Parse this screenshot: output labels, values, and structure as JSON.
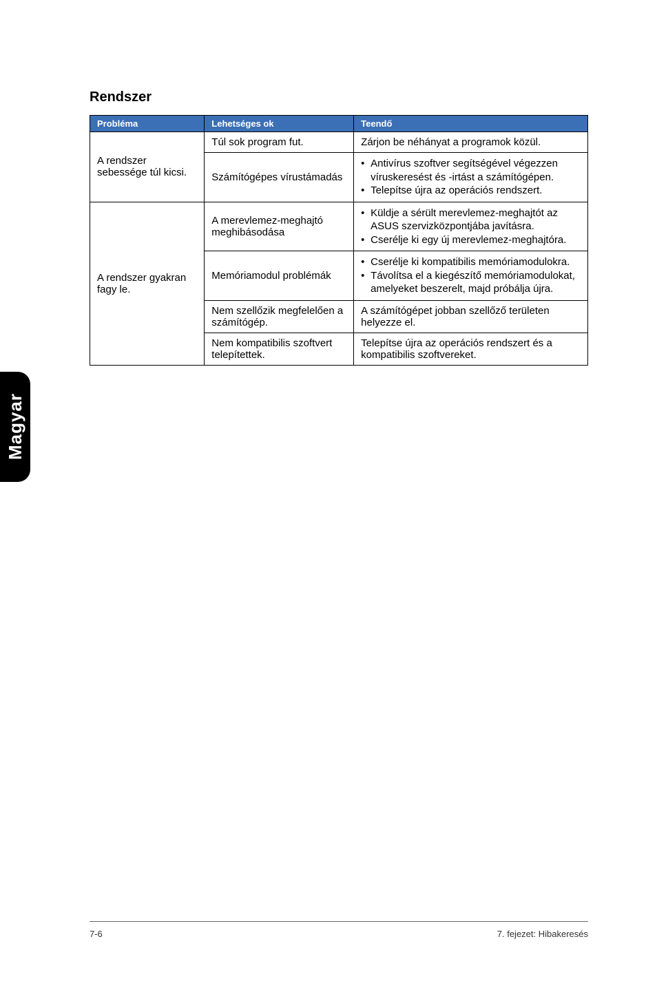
{
  "side_tab": "Magyar",
  "heading": "Rendszer",
  "columns": {
    "c1": "Probléma",
    "c2": "Lehetséges ok",
    "c3": "Teendő"
  },
  "colors": {
    "header_bg": "#3b6fb6",
    "header_fg": "#ffffff",
    "border": "#000000",
    "tab_bg": "#000000",
    "tab_fg": "#ffffff"
  },
  "rows": {
    "r1": {
      "problem": "A rendszer sebessége túl kicsi.",
      "cause1": "Túl sok program fut.",
      "action1": "Zárjon be néhányat a programok közül.",
      "cause2": "Számítógépes vírustámadás",
      "action2_i1": "Antivírus szoftver segítségével végezzen víruskeresést és -irtást a számítógépen.",
      "action2_i2": "Telepítse újra az operációs rendszert."
    },
    "r2": {
      "problem": "A rendszer gyakran fagy le.",
      "cause1": "A merevlemez-meghajtó meghibásodása",
      "action1_i1": "Küldje a sérült merevlemez-meghajtót az ASUS szervizközpontjába javításra.",
      "action1_i2": "Cserélje ki egy új merevlemez-meghajtóra.",
      "cause2": "Memóriamodul problémák",
      "action2_i1": "Cserélje ki kompatibilis memóriamodulokra.",
      "action2_i2": "Távolítsa el a kiegészítő memóriamodulokat, amelyeket beszerelt, majd próbálja újra.",
      "cause3": "Nem szellőzik megfelelően a számítógép.",
      "action3": "A számítógépet jobban szellőző területen helyezze el.",
      "cause4": "Nem kompatibilis szoftvert telepítettek.",
      "action4": "Telepítse újra az operációs rendszert és a kompatibilis szoftvereket."
    }
  },
  "footer": {
    "left": "7-6",
    "right": "7. fejezet: Hibakeresés"
  }
}
